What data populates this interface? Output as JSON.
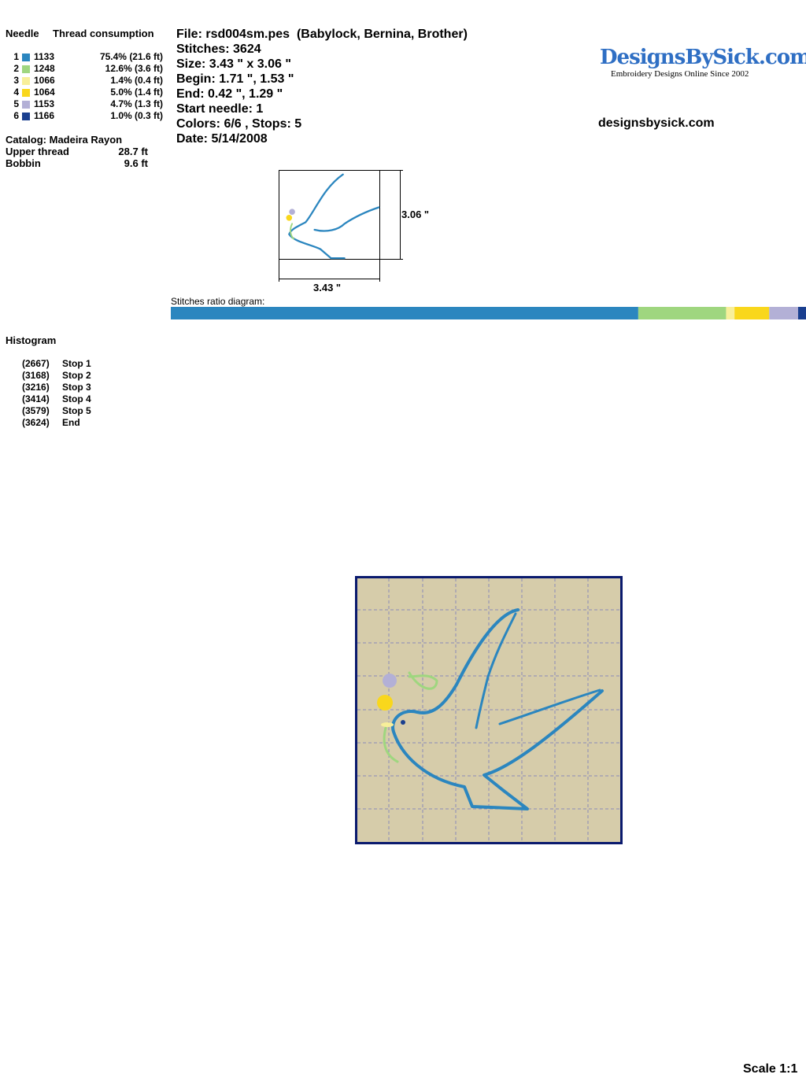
{
  "needle_table": {
    "headers": [
      "Needle",
      "Thread consumption"
    ],
    "rows": [
      {
        "needle": "1",
        "color": "#2b86bf",
        "code": "1133",
        "consumption": "75.4% (21.6 ft)"
      },
      {
        "needle": "2",
        "color": "#9fd67f",
        "code": "1248",
        "consumption": "12.6% (3.6 ft)"
      },
      {
        "needle": "3",
        "color": "#f8ef9a",
        "code": "1066",
        "consumption": "1.4% (0.4 ft)"
      },
      {
        "needle": "4",
        "color": "#f9d71c",
        "code": "1064",
        "consumption": "5.0% (1.4 ft)"
      },
      {
        "needle": "5",
        "color": "#b3b0d6",
        "code": "1153",
        "consumption": "4.7% (1.3 ft)"
      },
      {
        "needle": "6",
        "color": "#1a3f8f",
        "code": "1166",
        "consumption": "1.0% (0.3 ft)"
      }
    ]
  },
  "catalog": "Catalog: Madeira Rayon",
  "totals": [
    {
      "label": "Upper thread",
      "value": "28.7 ft"
    },
    {
      "label": "Bobbin",
      "value": "9.6 ft"
    }
  ],
  "info": [
    "File: rsd004sm.pes  (Babylock, Bernina, Brother)",
    "Stitches: 3624",
    "Size: 3.43 \" x 3.06 \"",
    "Begin: 1.71 \", 1.53 \"",
    "End: 0.42 \", 1.29 \"",
    "Start needle: 1",
    "Colors: 6/6 , Stops: 5",
    "Date: 5/14/2008"
  ],
  "logo": {
    "title": "DesignsBySick.com",
    "tagline": "Embroidery Designs Online Since 2002"
  },
  "website": "designsbysick.com",
  "preview": {
    "height_label": "3.06 \"",
    "width_label": "3.43 \""
  },
  "ratio_diagram": {
    "title": "Stitches ratio diagram:"
  },
  "histogram": {
    "title": "Histogram",
    "rows": [
      {
        "count": {
          "value": 2667,
          "label": "(2667)"
        },
        "label": "Stop 1"
      },
      {
        "count": {
          "value": 3168,
          "label": "(3168)"
        },
        "label": "Stop 2"
      },
      {
        "count": {
          "value": 3216,
          "label": "(3216)"
        },
        "label": "Stop 3"
      },
      {
        "count": {
          "value": 3414,
          "label": "(3414)"
        },
        "label": "Stop 4"
      },
      {
        "count": {
          "value": 3579,
          "label": "(3579)"
        },
        "label": "Stop 5"
      },
      {
        "count": {
          "value": 3624,
          "label": "(3624)"
        },
        "label": "End"
      }
    ]
  },
  "scale": "Scale 1:1"
}
